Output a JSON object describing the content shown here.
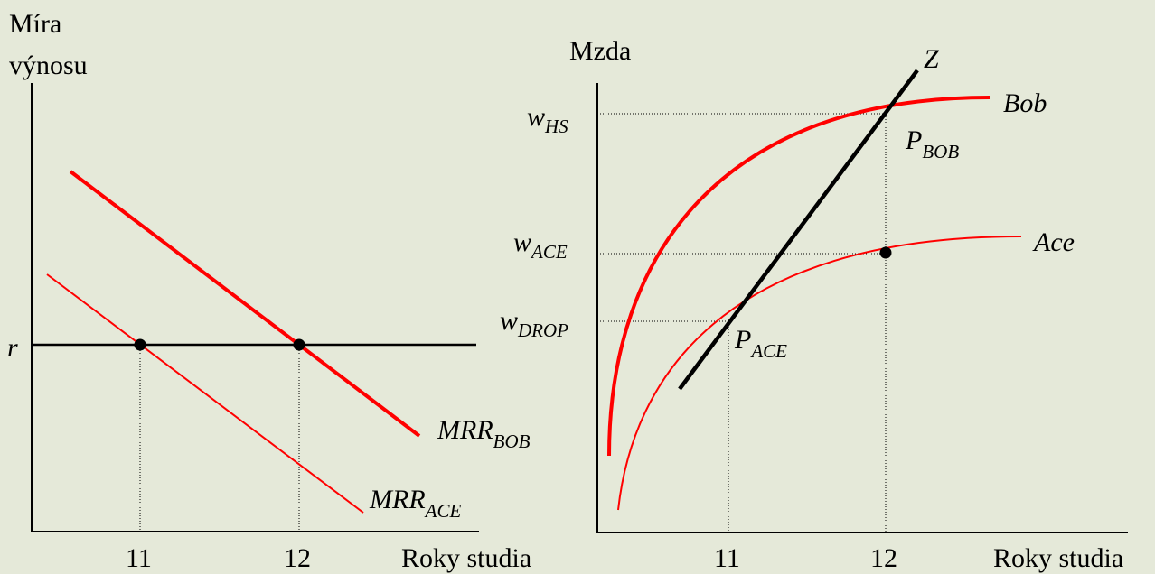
{
  "left_panel": {
    "ylabel_line1": "Míra",
    "ylabel_line2": "výnosu",
    "xlabel": "Roky studia",
    "rate_label": "r",
    "tick_11": "11",
    "tick_12": "12",
    "mrr_bob_main": "MRR",
    "mrr_bob_sub": "BOB",
    "mrr_ace_main": "MRR",
    "mrr_ace_sub": "ACE"
  },
  "right_panel": {
    "ylabel": "Mzda",
    "xlabel": "Roky studia",
    "tick_11": "11",
    "tick_12": "12",
    "w_hs_main": "w",
    "w_hs_sub": "HS",
    "w_ace_main": "w",
    "w_ace_sub": "ACE",
    "w_drop_main": "w",
    "w_drop_sub": "DROP",
    "p_bob_main": "P",
    "p_bob_sub": "BOB",
    "p_ace_main": "P",
    "p_ace_sub": "ACE",
    "curve_bob": "Bob",
    "curve_ace": "Ace",
    "z_label": "Z"
  },
  "colors": {
    "background": "#e5e9d9",
    "curve": "#ff0000",
    "axis": "#000000"
  }
}
